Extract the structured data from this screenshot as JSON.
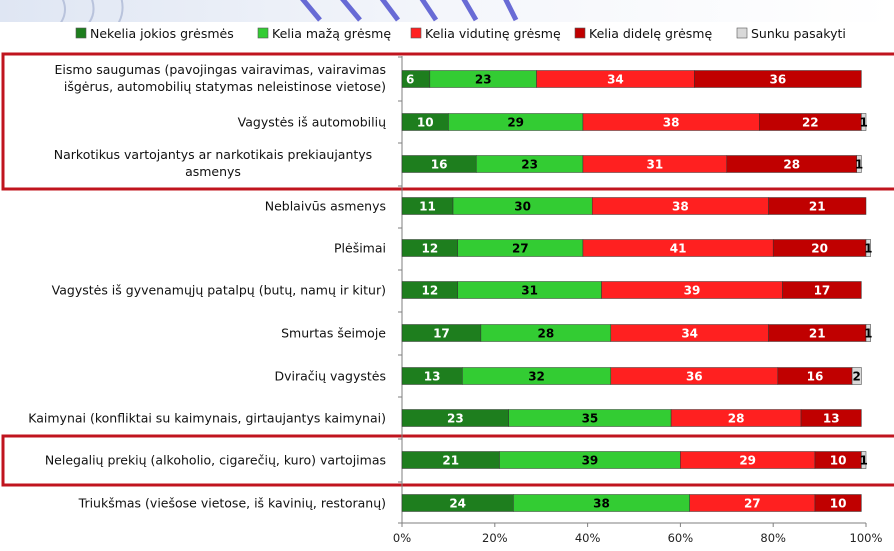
{
  "header": {
    "title": ""
  },
  "colors": {
    "none": "#1E7E1E",
    "small": "#33CC33",
    "medium": "#FF2020",
    "big": "#C00000",
    "hard": "#D9D9D9",
    "highlight": "#C0141E",
    "header_accent": "#3A3CC8"
  },
  "chart_data": {
    "type": "bar",
    "orientation": "horizontal",
    "stacked": "percent",
    "categories": [
      "Eismo saugumas (pavojingas vairavimas, vairavimas išgėrus, automobilių statymas neleistinose vietose)",
      "Vagystės iš automobilių",
      "Narkotikus vartojantys ar narkotikais prekiaujantys asmenys",
      "Neblaivūs asmenys",
      "Plėšimai",
      "Vagystės iš gyvenamųjų patalpų (butų, namų ir kitur)",
      "Smurtas šeimoje",
      "Dviračių vagystės",
      "Kaimynai (konfliktai su kaimynais, girtaujantys kaimynai)",
      "Nelegalių prekių (alkoholio, cigarečių, kuro) vartojimas",
      "Triukšmas (viešose vietose, iš kavinių, restoranų)"
    ],
    "series": [
      {
        "name": "Nekelia jokios grėsmės",
        "values": [
          6,
          10,
          16,
          11,
          12,
          12,
          17,
          13,
          23,
          21,
          24
        ]
      },
      {
        "name": "Kelia mažą grėsmę",
        "values": [
          23,
          29,
          23,
          30,
          27,
          31,
          28,
          32,
          35,
          39,
          38
        ]
      },
      {
        "name": "Kelia vidutinę grėsmę",
        "values": [
          34,
          38,
          31,
          38,
          41,
          39,
          34,
          36,
          28,
          29,
          27
        ]
      },
      {
        "name": "Kelia didelę grėsmę",
        "values": [
          36,
          22,
          28,
          21,
          20,
          17,
          21,
          16,
          13,
          10,
          10
        ]
      },
      {
        "name": "Sunku pasakyti",
        "values": [
          0,
          1,
          1,
          0,
          1,
          0,
          1,
          2,
          0,
          1,
          0
        ]
      }
    ],
    "x_ticks": [
      "0%",
      "20%",
      "40%",
      "60%",
      "80%",
      "100%"
    ],
    "xlim": [
      0,
      100
    ],
    "legend_position": "top",
    "highlighted_groups": [
      [
        0,
        2
      ],
      [
        9,
        9
      ]
    ],
    "grid": false
  }
}
